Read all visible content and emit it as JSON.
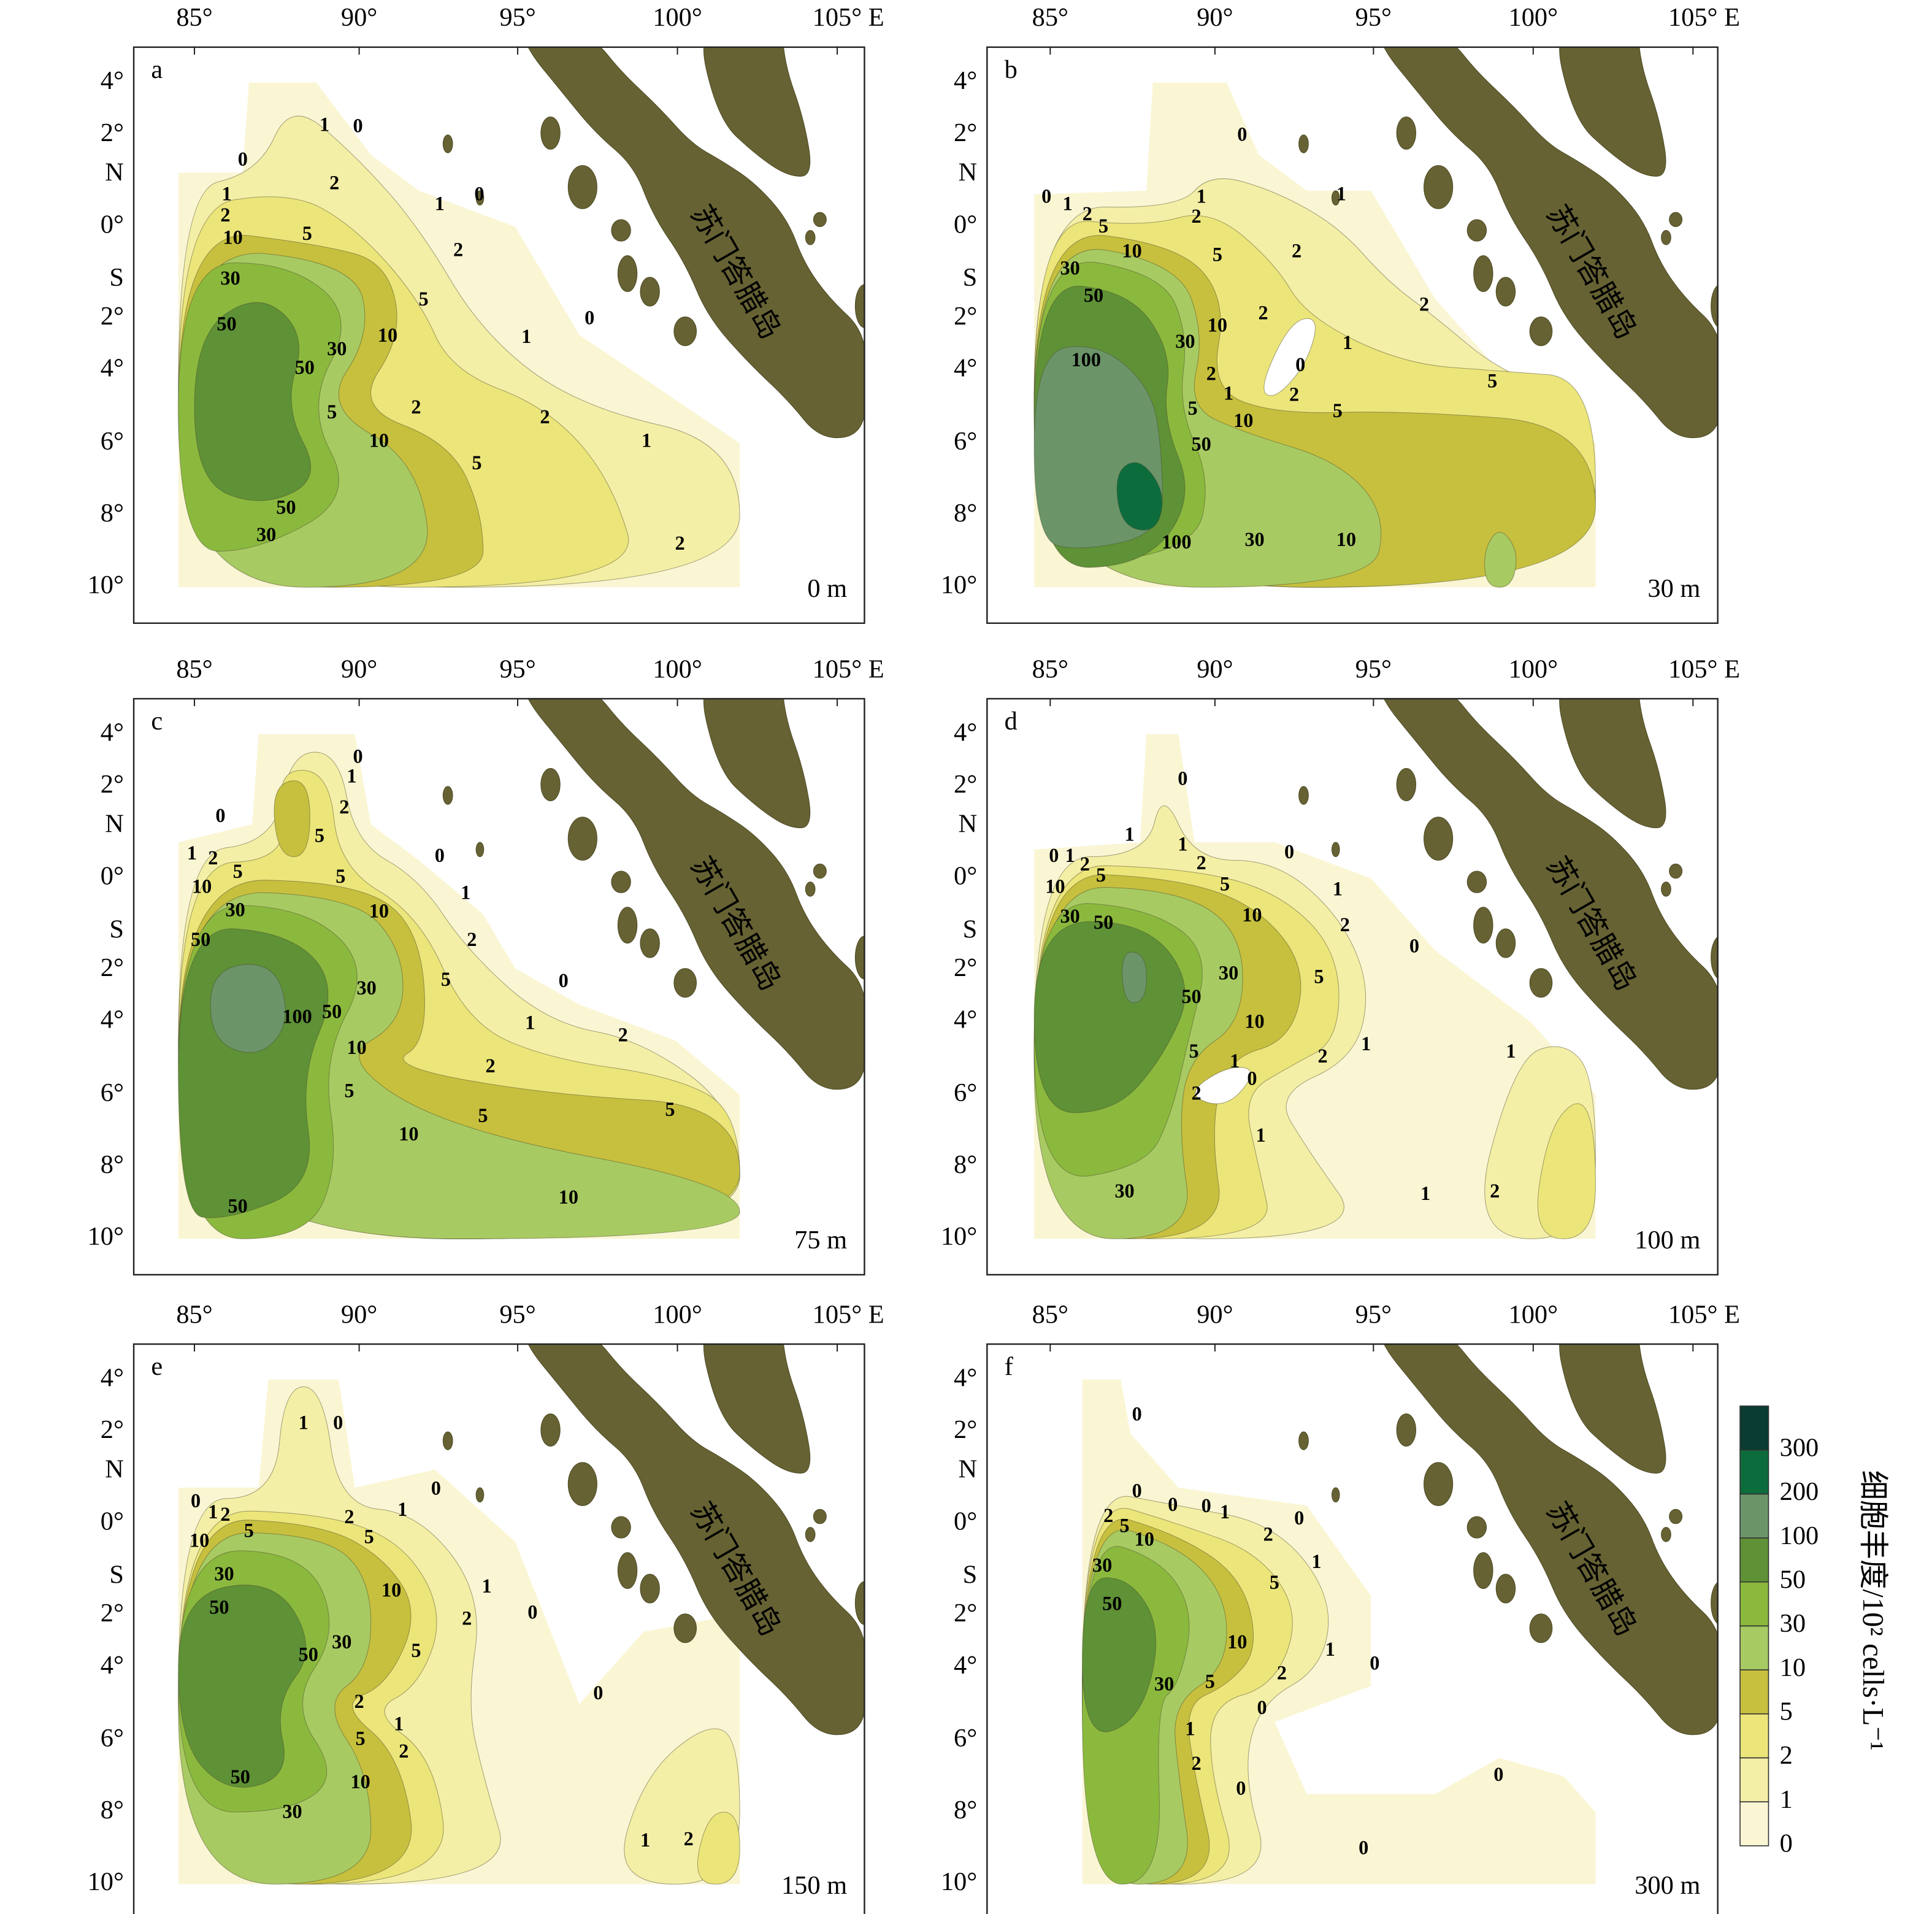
{
  "island_label": "苏门答腊岛",
  "lon_ticks": [
    "85°",
    "90°",
    "95°",
    "100°",
    "105° E"
  ],
  "lat_ticks": [
    "4°",
    "2°",
    "N",
    "0°",
    "S",
    "2°",
    "4°",
    "6°",
    "8°",
    "10°"
  ],
  "legend": {
    "title": "细胞丰度/10² cells·L⁻¹",
    "levels": [
      0,
      1,
      2,
      5,
      10,
      30,
      50,
      100,
      200,
      300
    ],
    "colors": [
      "#faf6d4",
      "#f4efa6",
      "#ece57a",
      "#c7c03e",
      "#a8ca62",
      "#8bb93e",
      "#5f9136",
      "#6b9569",
      "#0d6c3c",
      "#0a3c33"
    ]
  },
  "panels": [
    {
      "label": "a",
      "depth": "0 m",
      "contour_labels": [
        1,
        0,
        0,
        2,
        1,
        2,
        0,
        1,
        10,
        5,
        2,
        30,
        5,
        0,
        50,
        10,
        30,
        1,
        50,
        2,
        5,
        2,
        10,
        1,
        5,
        50,
        30,
        2
      ]
    },
    {
      "label": "b",
      "depth": "30 m",
      "contour_labels": [
        0,
        0,
        1,
        2,
        5,
        1,
        2,
        1,
        10,
        5,
        2,
        30,
        50,
        2,
        30,
        10,
        2,
        1,
        100,
        0,
        2,
        1,
        2,
        5,
        5,
        10,
        5,
        50,
        100,
        30,
        10
      ]
    },
    {
      "label": "c",
      "depth": "75 m",
      "contour_labels": [
        1,
        2,
        5,
        10,
        0,
        1,
        0,
        2,
        5,
        0,
        5,
        1,
        10,
        30,
        2,
        50,
        30,
        5,
        0,
        100,
        50,
        1,
        2,
        10,
        2,
        5,
        5,
        5,
        10,
        50,
        10
      ]
    },
    {
      "label": "d",
      "depth": "100 m",
      "contour_labels": [
        0,
        1,
        1,
        0,
        0,
        1,
        2,
        5,
        2,
        5,
        10,
        1,
        10,
        30,
        50,
        2,
        0,
        30,
        5,
        50,
        10,
        1,
        2,
        1,
        5,
        1,
        0,
        2,
        1,
        30,
        1,
        2
      ]
    },
    {
      "label": "e",
      "depth": "150 m",
      "contour_labels": [
        1,
        0,
        0,
        1,
        2,
        5,
        10,
        2,
        5,
        1,
        0,
        30,
        10,
        1,
        50,
        0,
        2,
        50,
        30,
        5,
        0,
        2,
        1,
        2,
        5,
        10,
        50,
        30,
        1,
        2
      ]
    },
    {
      "label": "f",
      "depth": "300 m",
      "contour_labels": [
        0,
        0,
        0,
        0,
        2,
        5,
        10,
        1,
        2,
        0,
        1,
        30,
        5,
        50,
        10,
        1,
        0,
        2,
        30,
        5,
        0,
        1,
        2,
        0,
        0,
        0
      ]
    }
  ]
}
